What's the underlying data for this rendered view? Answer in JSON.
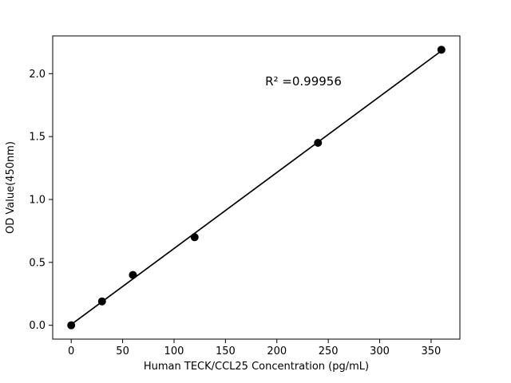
{
  "chart_data": {
    "type": "scatter",
    "title": "",
    "xlabel": "Human TECK/CCL25 Concentration (pg/mL)",
    "ylabel": "OD Value(450nm)",
    "annotation": "R² =0.99956",
    "x": [
      0,
      30,
      60,
      120,
      240,
      360
    ],
    "y": [
      0.0,
      0.19,
      0.4,
      0.7,
      1.45,
      2.19
    ],
    "fit": {
      "type": "linear",
      "r_squared": 0.99956
    },
    "xlim": [
      -18,
      378
    ],
    "ylim": [
      -0.11,
      2.3
    ],
    "xticks": [
      0,
      50,
      100,
      150,
      200,
      250,
      300,
      350
    ],
    "ytick_labels": [
      "0.0",
      "0.5",
      "1.0",
      "1.5",
      "2.0"
    ],
    "grid": false,
    "legend": "none",
    "marker_color": "#000000",
    "line_color": "#000000",
    "background_color": "#ffffff"
  }
}
